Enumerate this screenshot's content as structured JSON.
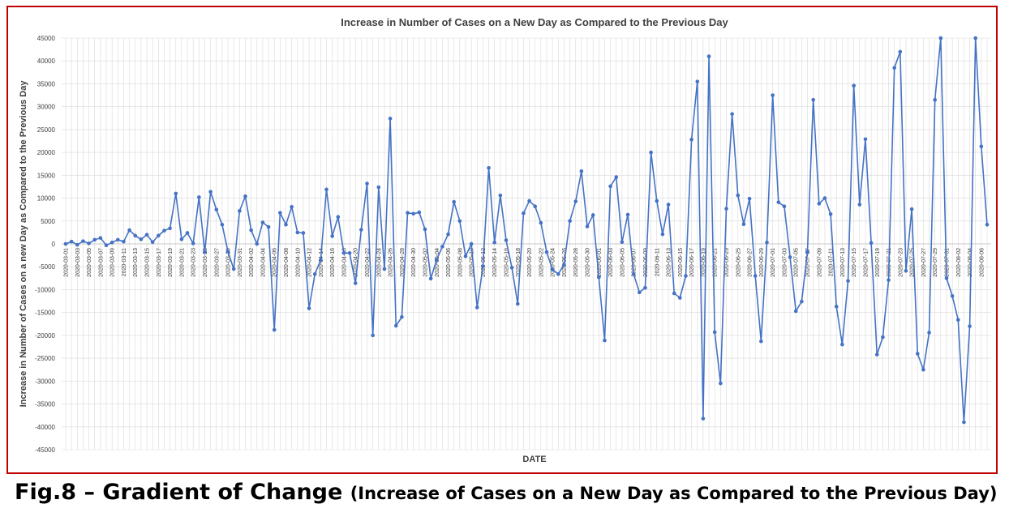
{
  "caption": {
    "main": "Fig.8 – Gradient of Change ",
    "sub": "(Increase of Cases on a New Day as Compared to the Previous Day)"
  },
  "colors": {
    "series": "#4472c4",
    "frame": "#c00000",
    "grid": "#d9d9d9",
    "text": "#404040"
  },
  "chart_data": {
    "type": "line",
    "title": "Increase in Number of Cases on a New Day as Compared to the Previous Day",
    "xlabel": "DATE",
    "ylabel": "Increase in Number of Cases on a new Day  as Compared to the Previous Day",
    "ylim": [
      -45000,
      45000
    ],
    "ytick_step": 5000,
    "grid": true,
    "legend": "none",
    "x_start": "2020-03-01",
    "x_end": "2020-08-07",
    "x_tick_labels": [
      "2020-03-01",
      "2020-03-03",
      "2020-03-05",
      "2020-03-07",
      "2020-03-09",
      "2020-03-11",
      "2020-03-13",
      "2020-03-15",
      "2020-03-17",
      "2020-03-19",
      "2020-03-21",
      "2020-03-23",
      "2020-03-25",
      "2020-03-27",
      "2020-03-29",
      "2020-03-31",
      "2020-04-02",
      "2020-04-04",
      "2020-04-06",
      "2020-04-08",
      "2020-04-10",
      "2020-04-12",
      "2020-04-14",
      "2020-04-16",
      "2020-04-18",
      "2020-04-20",
      "2020-04-22",
      "2020-04-24",
      "2020-04-26",
      "2020-04-28",
      "2020-04-30",
      "2020-05-02",
      "2020-05-04",
      "2020-05-06",
      "2020-05-08",
      "2020-05-10",
      "2020-05-12",
      "2020-05-14",
      "2020-05-16",
      "2020-05-18",
      "2020-05-20",
      "2020-05-22",
      "2020-05-24",
      "2020-05-26",
      "2020-05-28",
      "2020-05-30",
      "2020-06-01",
      "2020-06-03",
      "2020-06-05",
      "2020-06-07",
      "2020-06-09",
      "2020-06-11",
      "2020-06-13",
      "2020-06-15",
      "2020-06-17",
      "2020-06-19",
      "2020-06-21",
      "2020-06-23",
      "2020-06-25",
      "2020-06-27",
      "2020-06-29",
      "2020-07-01",
      "2020-07-03",
      "2020-07-05",
      "2020-07-07",
      "2020-07-09",
      "2020-07-11",
      "2020-07-13",
      "2020-07-15",
      "2020-07-17",
      "2020-07-19",
      "2020-07-21",
      "2020-07-23",
      "2020-07-25",
      "2020-07-27",
      "2020-07-29",
      "2020-07-31",
      "2020-08-02",
      "2020-08-04",
      "2020-08-06"
    ],
    "series": [
      {
        "values": [
          0,
          500,
          -200,
          600,
          100,
          900,
          1300,
          -300,
          300,
          900,
          500,
          3000,
          1800,
          1000,
          2000,
          400,
          1800,
          2900,
          3400,
          11000,
          1000,
          2400,
          100,
          10200,
          -1800,
          11400,
          7500,
          4200,
          -1700,
          -5500,
          7200,
          10400,
          3000,
          0,
          4700,
          3700,
          -18800,
          6800,
          4200,
          8100,
          2500,
          2400,
          -14100,
          -6600,
          -3500,
          11900,
          1700,
          5900,
          -2000,
          -2000,
          -8600,
          3100,
          13200,
          -20000,
          12400,
          -5500,
          27400,
          -17900,
          -16000,
          6800,
          6600,
          6900,
          3200,
          -7600,
          -3500,
          -600,
          2100,
          9200,
          5000,
          -2700,
          0,
          -13900,
          -4900,
          16600,
          300,
          10600,
          800,
          -5200,
          -13100,
          6700,
          9400,
          8200,
          4600,
          -1800,
          -5600,
          -6600,
          -4500,
          5000,
          9300,
          15900,
          3800,
          6300,
          -7300,
          -21100,
          12600,
          14600,
          400,
          6400,
          -6600,
          -10600,
          -9600,
          20000,
          9400,
          2100,
          8600,
          -10800,
          -11800,
          -7000,
          22800,
          35500,
          -38200,
          41000,
          -19300,
          -30500,
          7700,
          28400,
          10600,
          4300,
          9900,
          -7000,
          -21300,
          300,
          32500,
          9100,
          8200,
          -2900,
          -14700,
          -12600,
          -1700,
          31500,
          8800,
          10000,
          6500,
          -13700,
          -22000,
          -8100,
          34600,
          8600,
          22900,
          200,
          -24200,
          -20400,
          -7900,
          38500,
          42000,
          -5900,
          7600,
          -24000,
          -27500,
          -19400,
          31500,
          46000,
          -7500,
          -11400,
          -16600,
          -39000,
          -18000,
          46000,
          21300,
          4200
        ]
      }
    ]
  }
}
